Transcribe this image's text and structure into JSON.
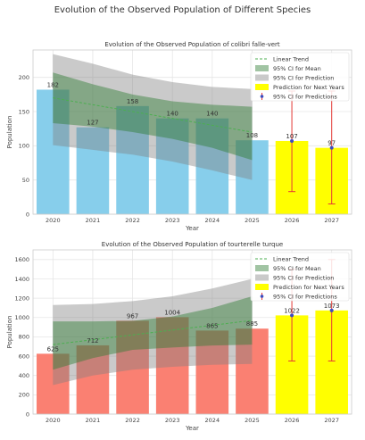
{
  "suptitle": "Evolution of the Observed Population of Different Species",
  "colors": {
    "grid": "#e6e6e6",
    "plot_bg": "#ffffff",
    "trend": "#4caf50",
    "ci_mean": "#2e7d32",
    "ci_pred": "#808080",
    "prediction_bar": "#ffff00",
    "error_bar": "#e53935",
    "pred_marker": "#3b4cc0"
  },
  "legend": {
    "trend": "Linear Trend",
    "ci_mean": "95% CI for Mean",
    "ci_pred": "95% CI for Prediction",
    "prediction": "Prediction for Next Years",
    "ci_pred_point": "95% CI for Predictions"
  },
  "chart_data": [
    {
      "type": "bar",
      "title": "Evolution of the Observed Population of colibri falle-vert",
      "xlabel": "Year",
      "ylabel": "Population",
      "categories": [
        "2020",
        "2021",
        "2022",
        "2023",
        "2024",
        "2025",
        "2026",
        "2027"
      ],
      "ylim": [
        0,
        240
      ],
      "yticks": [
        0,
        50,
        100,
        150,
        200
      ],
      "bar_color": "#87ceeb",
      "observed": [
        182,
        127,
        158,
        140,
        140,
        108
      ],
      "predicted": [
        107,
        97
      ],
      "pred_ci": [
        [
          33,
          180
        ],
        [
          15,
          180
        ]
      ],
      "trend": [
        170,
        160,
        150,
        140,
        130,
        120
      ],
      "ci_mean_low": [
        133,
        128,
        120,
        110,
        97,
        79
      ],
      "ci_mean_high": [
        207,
        190,
        175,
        165,
        160,
        157
      ],
      "ci_pred_low": [
        101,
        94,
        87,
        77,
        64,
        50
      ],
      "ci_pred_high": [
        234,
        220,
        204,
        193,
        186,
        183
      ],
      "grid": true,
      "legend_position": "upper right"
    },
    {
      "type": "bar",
      "title": "Evolution of the Observed Population of tourterelle turque",
      "xlabel": "Year",
      "ylabel": "Population",
      "categories": [
        "2020",
        "2021",
        "2022",
        "2023",
        "2024",
        "2025",
        "2026",
        "2027"
      ],
      "ylim": [
        0,
        1700
      ],
      "yticks": [
        0,
        200,
        400,
        600,
        800,
        1000,
        1200,
        1400,
        1600
      ],
      "bar_color": "#fa8072",
      "observed": [
        625,
        712,
        967,
        1004,
        865,
        885
      ],
      "predicted": [
        1022,
        1073
      ],
      "pred_ci": [
        [
          550,
          1500
        ],
        [
          550,
          1600
        ]
      ],
      "trend": [
        720,
        770,
        820,
        870,
        920,
        970
      ],
      "ci_mean_low": [
        460,
        580,
        665,
        690,
        710,
        720
      ],
      "ci_mean_high": [
        960,
        960,
        965,
        1010,
        1100,
        1220
      ],
      "ci_pred_low": [
        300,
        400,
        460,
        490,
        510,
        520
      ],
      "ci_pred_high": [
        1130,
        1140,
        1170,
        1220,
        1300,
        1400
      ],
      "grid": true,
      "legend_position": "upper right"
    }
  ]
}
